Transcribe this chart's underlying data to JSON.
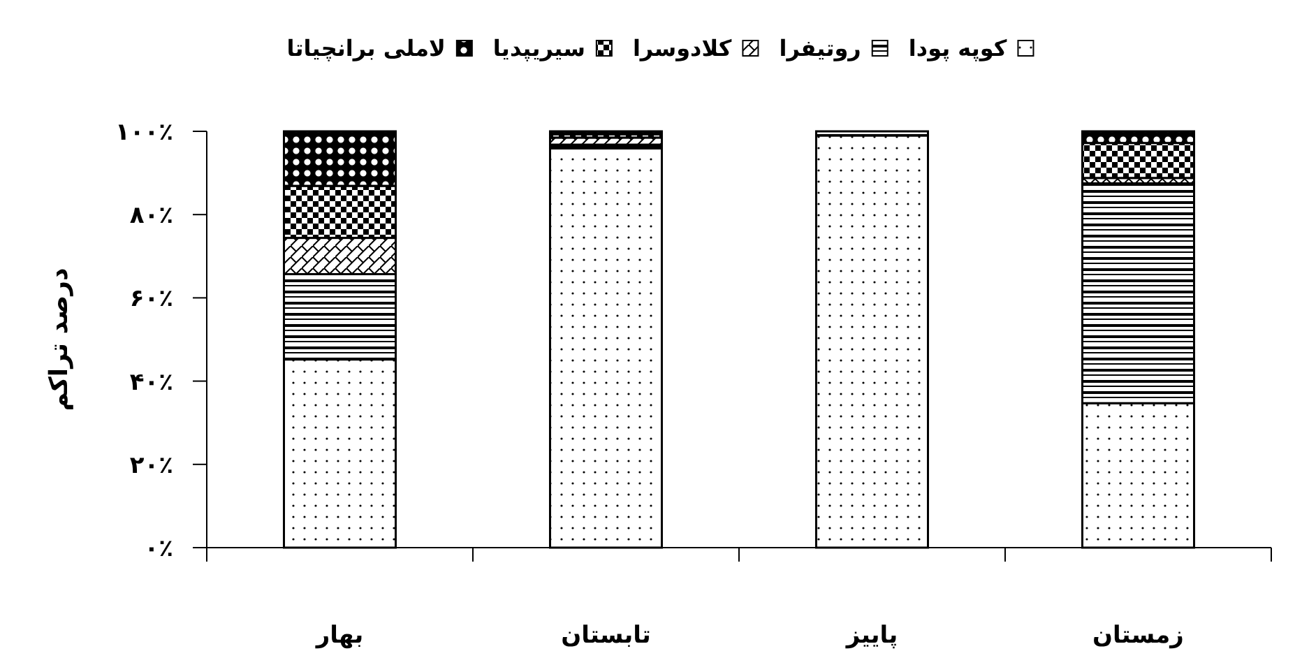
{
  "chart_data": {
    "type": "bar",
    "stacked": true,
    "ylabel": "درصد تراکم",
    "categories": [
      "بهار",
      "تابستان",
      "پاییز",
      "زمستان"
    ],
    "series": [
      {
        "name": "کوپه پودا",
        "color": "#000000",
        "values": [
          45.2,
          95.9,
          99.0,
          34.7
        ]
      },
      {
        "name": "روتیفرا",
        "color": "#000000",
        "values": [
          20.5,
          0.9,
          1.0,
          52.8
        ]
      },
      {
        "name": "کلادوسرا",
        "color": "#000000",
        "values": [
          8.7,
          1.7,
          0,
          1.3
        ]
      },
      {
        "name": "سیریپدیا",
        "color": "#000000",
        "values": [
          12.5,
          0.8,
          0,
          8.4
        ]
      },
      {
        "name": "لاملی برانچیاتا",
        "color": "#000000",
        "values": [
          13.1,
          0.7,
          0,
          2.8
        ]
      }
    ],
    "ylim": [
      0,
      100
    ],
    "yticks": [
      {
        "value": 0,
        "label": "۰٪"
      },
      {
        "value": 20,
        "label": "۲۰٪"
      },
      {
        "value": 40,
        "label": "۴۰٪"
      },
      {
        "value": 60,
        "label": "۶۰٪"
      },
      {
        "value": 80,
        "label": "۸۰٪"
      },
      {
        "value": 100,
        "label": "۱۰۰٪"
      }
    ],
    "legend": "top",
    "grid": false
  }
}
